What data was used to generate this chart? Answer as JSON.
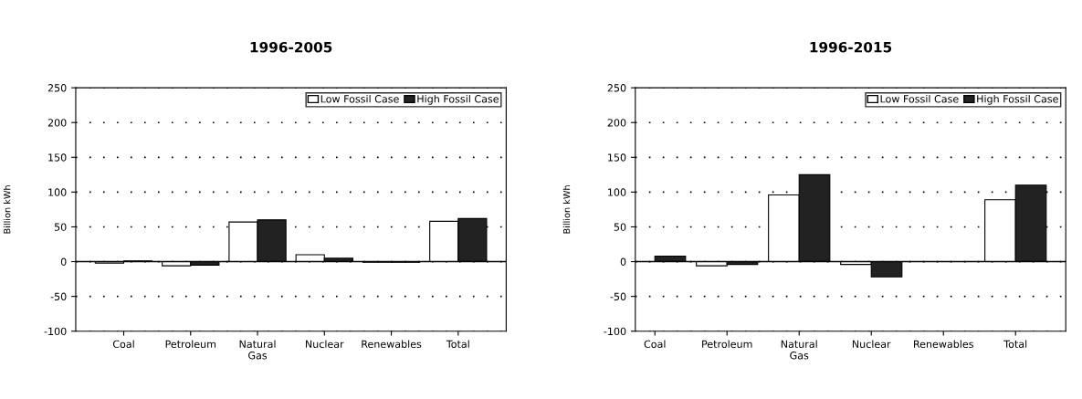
{
  "chart_data": [
    {
      "type": "bar",
      "title": "1996-2005",
      "ylabel": "Billion kWh",
      "categories": [
        "Coal",
        "Petroleum",
        "Natural\nGas",
        "Nuclear",
        "Renewables",
        "Total"
      ],
      "series": [
        {
          "name": "Low Fossil Case",
          "color": "#ffffff",
          "values": [
            -2,
            -6,
            57,
            10,
            -1,
            58
          ]
        },
        {
          "name": "High Fossil Case",
          "color": "#222222",
          "values": [
            1,
            -5,
            60,
            5,
            -1,
            62
          ]
        }
      ],
      "ylim": [
        -100,
        250
      ],
      "yticks": [
        -100,
        -50,
        0,
        50,
        100,
        150,
        200,
        250
      ],
      "grid": "y",
      "legend": "top right"
    },
    {
      "type": "bar",
      "title": "1996-2015",
      "ylabel": "Billion kWh",
      "categories": [
        "Coal",
        "Petroleum",
        "Natural\nGas",
        "Nuclear",
        "Renewables",
        "Total"
      ],
      "series": [
        {
          "name": "Low Fossil Case",
          "color": "#ffffff",
          "values": [
            null,
            -6,
            96,
            -4,
            null,
            89
          ]
        },
        {
          "name": "High Fossil Case",
          "color": "#222222",
          "values": [
            8,
            -4,
            125,
            -22,
            null,
            110
          ]
        }
      ],
      "ylim": [
        -100,
        250
      ],
      "yticks": [
        -100,
        -50,
        0,
        50,
        100,
        150,
        200,
        250
      ],
      "grid": "y",
      "legend": "top right"
    }
  ]
}
